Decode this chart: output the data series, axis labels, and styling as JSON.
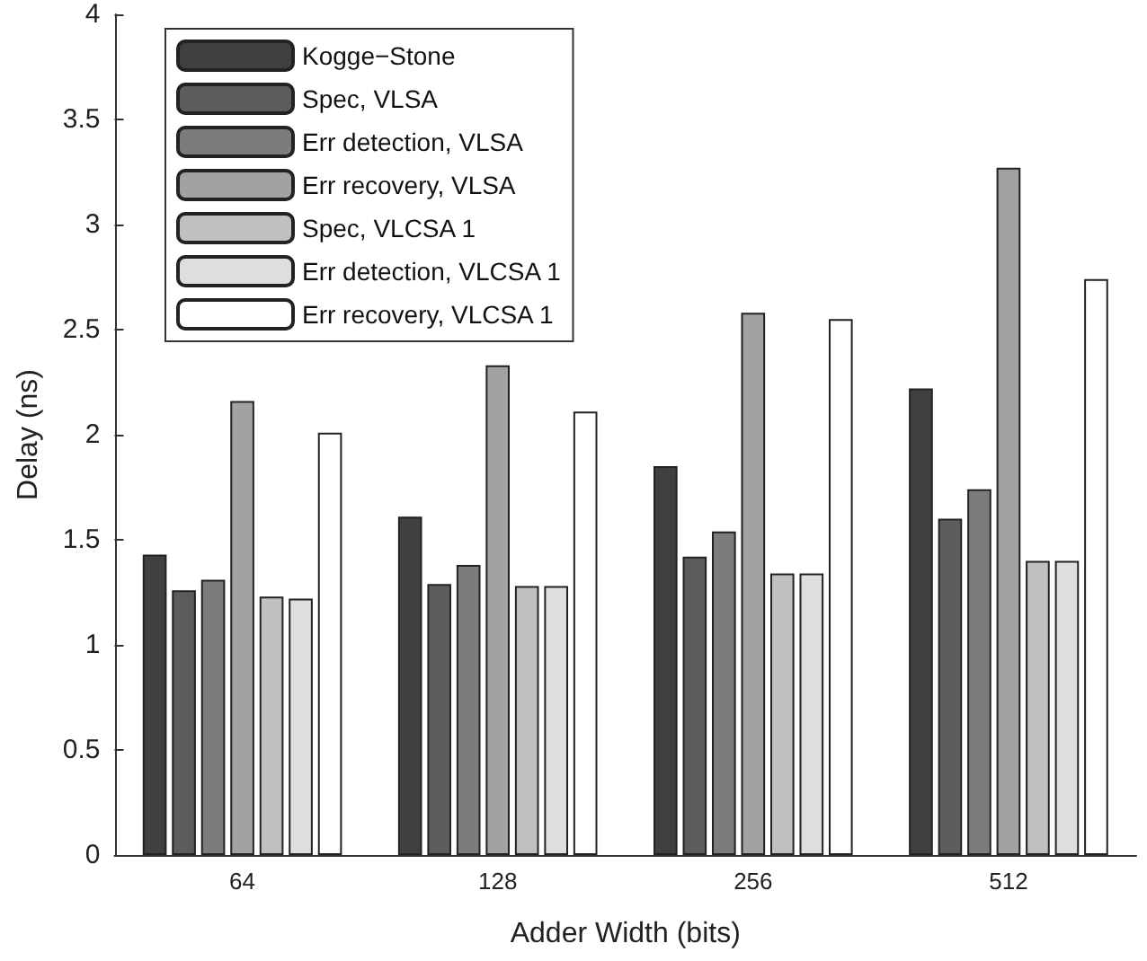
{
  "chart_data": {
    "type": "bar",
    "xlabel": "Adder Width (bits)",
    "ylabel": "Delay (ns)",
    "categories": [
      "64",
      "128",
      "256",
      "512"
    ],
    "series": [
      {
        "name": "Kogge−Stone",
        "color": "#404040",
        "values": [
          1.43,
          1.61,
          1.85,
          2.22
        ]
      },
      {
        "name": "Spec, VLSA",
        "color": "#5c5c5c",
        "values": [
          1.26,
          1.29,
          1.42,
          1.6
        ]
      },
      {
        "name": "Err detection, VLSA",
        "color": "#7c7c7c",
        "values": [
          1.31,
          1.38,
          1.54,
          1.74
        ]
      },
      {
        "name": "Err recovery, VLSA",
        "color": "#a2a2a2",
        "values": [
          2.16,
          2.33,
          2.58,
          3.27
        ]
      },
      {
        "name": "Spec, VLCSA 1",
        "color": "#c0c0c0",
        "values": [
          1.23,
          1.28,
          1.34,
          1.4
        ]
      },
      {
        "name": "Err detection, VLCSA 1",
        "color": "#dedede",
        "values": [
          1.22,
          1.28,
          1.34,
          1.4
        ]
      },
      {
        "name": "Err recovery, VLCSA 1",
        "color": "#ffffff",
        "values": [
          2.01,
          2.11,
          2.55,
          2.74
        ]
      }
    ],
    "ylim": [
      0,
      4
    ],
    "yticks": [
      0,
      0.5,
      1,
      1.5,
      2,
      2.5,
      3,
      3.5,
      4
    ],
    "grid": false,
    "legend": "top left"
  }
}
